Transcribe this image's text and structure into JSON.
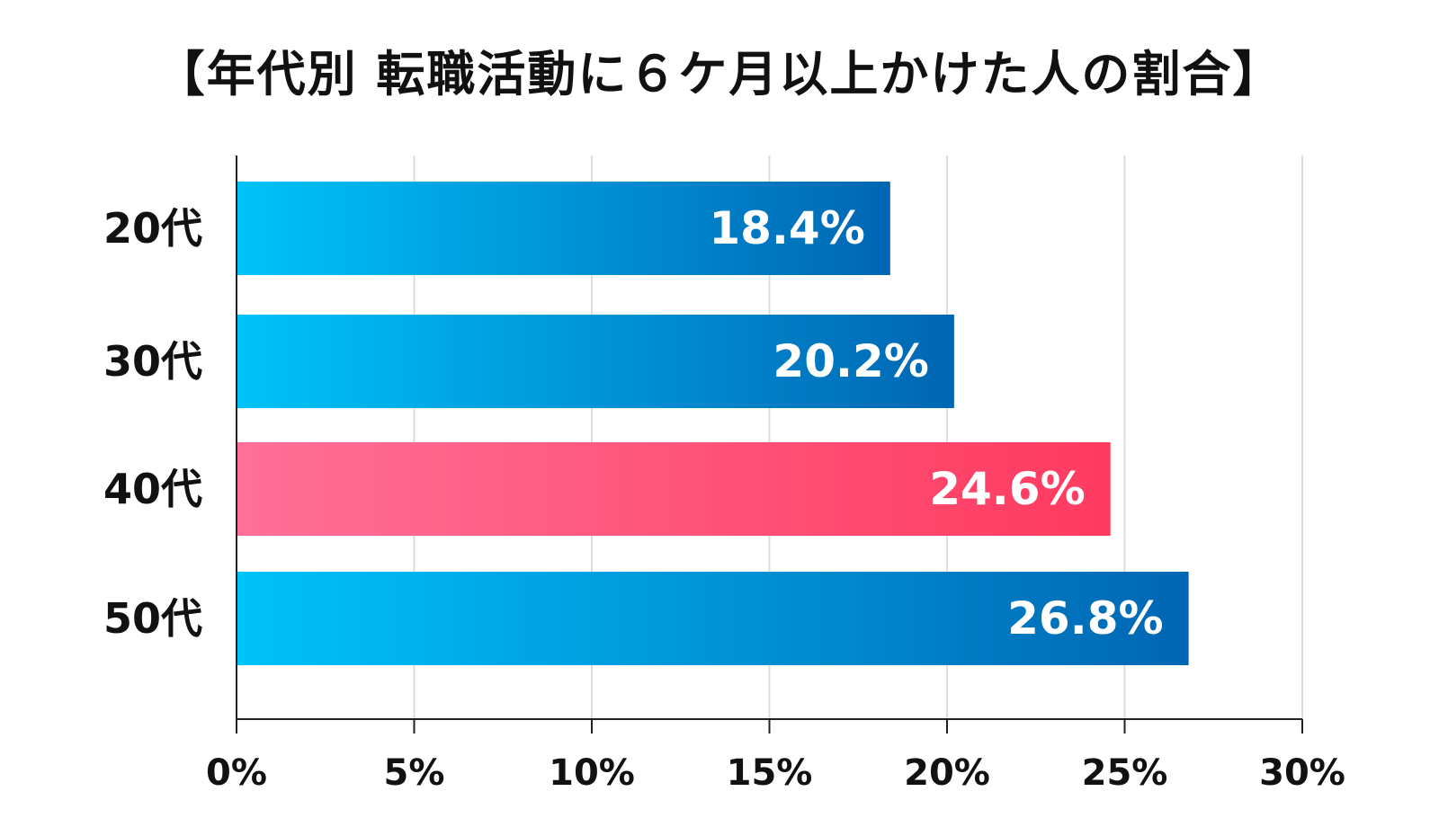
{
  "chart_data": {
    "type": "bar",
    "orientation": "horizontal",
    "title": "【年代別 転職活動に６ケ月以上かけた人の割合】",
    "categories": [
      "20代",
      "30代",
      "40代",
      "50代"
    ],
    "values": [
      18.4,
      20.2,
      24.6,
      26.8
    ],
    "value_labels": [
      "18.4%",
      "20.2%",
      "24.6%",
      "26.8%"
    ],
    "highlight_index": 2,
    "xlim": [
      0,
      30
    ],
    "xticks": [
      0,
      5,
      10,
      15,
      20,
      25,
      30
    ],
    "xtick_labels": [
      "0%",
      "5%",
      "10%",
      "15%",
      "20%",
      "25%",
      "30%"
    ],
    "grid": true,
    "legend": "none",
    "colors": {
      "bar_start": "#00c3fa",
      "bar_end": "#0066b3",
      "highlight_start": "#ff7098",
      "highlight_end": "#ff3a5f",
      "grid": "#dddddd",
      "axis": "#222222"
    }
  }
}
